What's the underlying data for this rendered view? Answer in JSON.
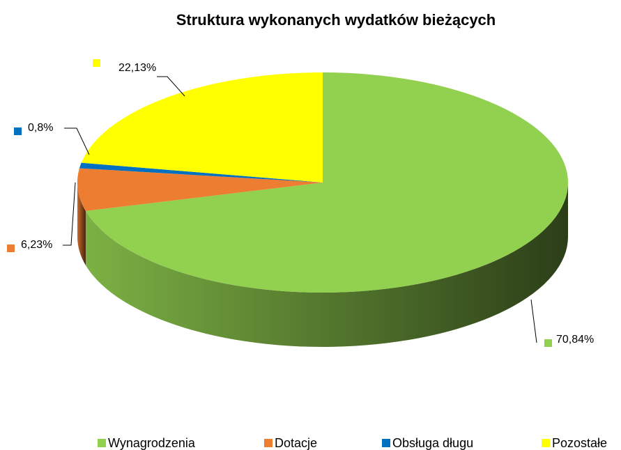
{
  "chart_data": {
    "type": "pie",
    "title": "Struktura wykonanych wydatków bieżących",
    "categories": [
      "Wynagrodzenia",
      "Dotacje",
      "Obsługa długu",
      "Pozostałe"
    ],
    "values": [
      70.84,
      6.23,
      0.8,
      22.13
    ],
    "value_labels": [
      "70,84%",
      "6,23%",
      "0,8%",
      "22,13%"
    ],
    "colors": [
      "#92d050",
      "#ed7d31",
      "#0070c0",
      "#ffff00"
    ],
    "legend": "bottom"
  }
}
